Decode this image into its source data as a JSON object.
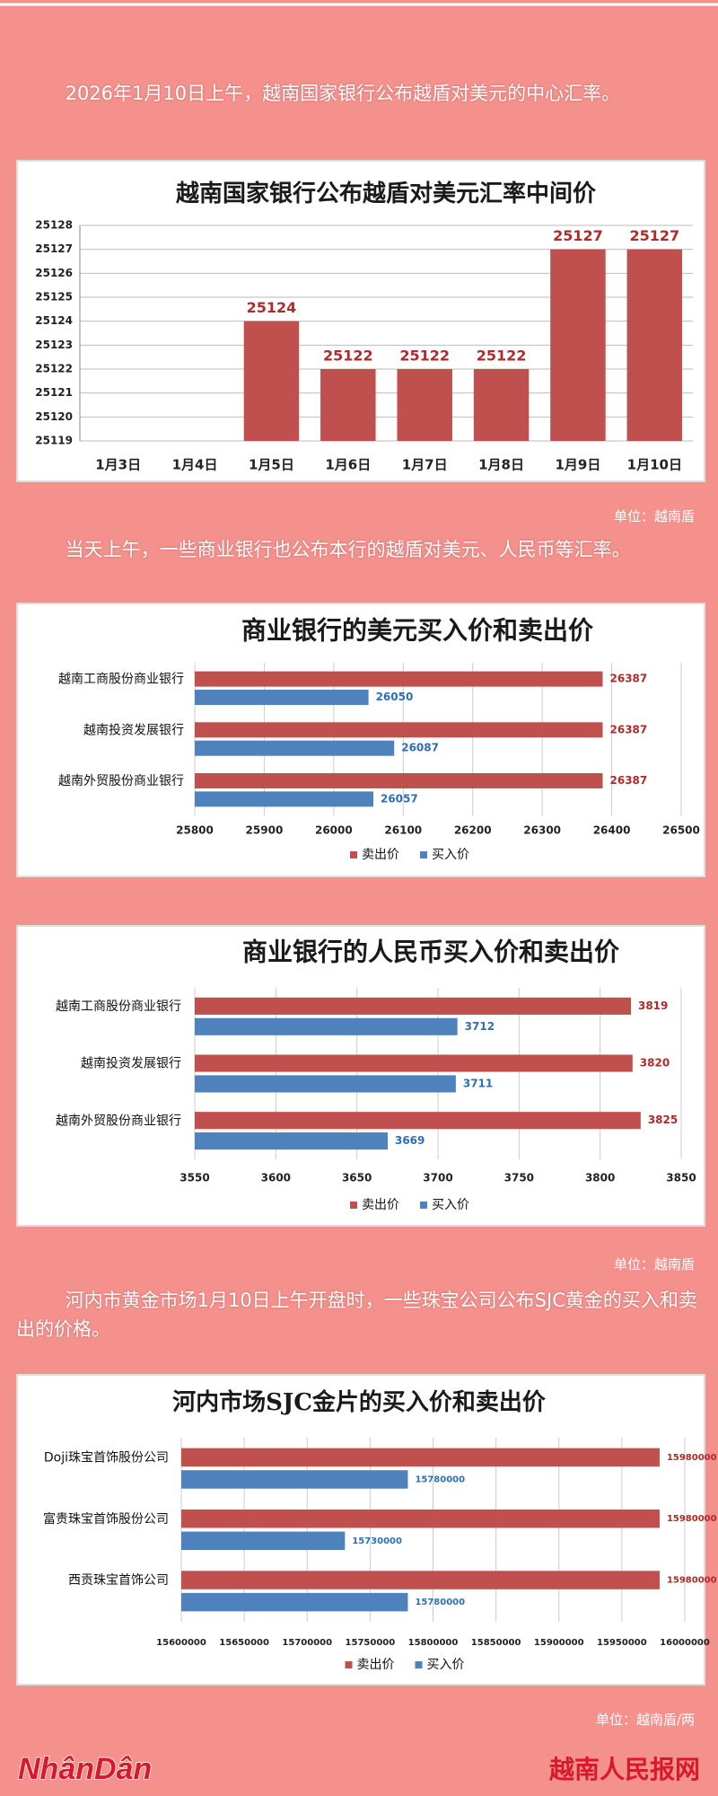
{
  "paragraphs": [
    "2026年1月10日上午，越南国家银行公布越盾对美元的中心汇率。",
    "当天上午，一些商业银行也公布本行的越盾对美元、人民币等汇率。",
    "河内市黄金市场1月10日上午开盘时，一些珠宝公司公布SJC黄金的买入和卖出的价格。"
  ],
  "units": [
    "单位：越南盾",
    "单位：越南盾",
    "单位：越南盾/两"
  ],
  "logo": "NhânDân",
  "site": "越南人民报网",
  "chart_data": [
    {
      "type": "bar",
      "title": "越南国家银行公布越盾对美元汇率中间价",
      "categories": [
        "1月3日",
        "1月4日",
        "1月5日",
        "1月6日",
        "1月7日",
        "1月8日",
        "1月9日",
        "1月10日"
      ],
      "values": [
        null,
        null,
        25124,
        25122,
        25122,
        25122,
        25127,
        25127
      ],
      "color": "#c0504d",
      "ylim": [
        25119,
        25128
      ],
      "yticks": [
        25119,
        25120,
        25121,
        25122,
        25123,
        25124,
        25125,
        25126,
        25127,
        25128
      ],
      "grid": true
    },
    {
      "type": "barh",
      "title": "商业银行的美元买入价和卖出价",
      "categories": [
        "越南工商股份商业银行",
        "越南投资发展银行",
        "越南外贸股份商业银行"
      ],
      "series": [
        {
          "name": "卖出价",
          "color": "#c0504d",
          "values": [
            26387,
            26387,
            26387
          ]
        },
        {
          "name": "买入价",
          "color": "#4f81bd",
          "values": [
            26050,
            26087,
            26057
          ]
        }
      ],
      "xlim": [
        25800,
        26500
      ],
      "xticks": [
        25800,
        25900,
        26000,
        26100,
        26200,
        26300,
        26400,
        26500
      ],
      "grid": true,
      "legend": "bottom"
    },
    {
      "type": "barh",
      "title": "商业银行的人民币买入价和卖出价",
      "categories": [
        "越南工商股份商业银行",
        "越南投资发展银行",
        "越南外贸股份商业银行"
      ],
      "series": [
        {
          "name": "卖出价",
          "color": "#c0504d",
          "values": [
            3819,
            3820,
            3825
          ]
        },
        {
          "name": "买入价",
          "color": "#4f81bd",
          "values": [
            3712,
            3711,
            3669
          ]
        }
      ],
      "xlim": [
        3550,
        3850
      ],
      "xticks": [
        3550,
        3600,
        3650,
        3700,
        3750,
        3800,
        3850
      ],
      "grid": true,
      "legend": "bottom"
    },
    {
      "type": "barh",
      "title": "河内市场SJC金片的买入价和卖出价",
      "categories": [
        "Doji珠宝首饰股份公司",
        "富贵珠宝首饰股份公司",
        "西贡珠宝首饰公司"
      ],
      "series": [
        {
          "name": "卖出价",
          "color": "#c0504d",
          "values": [
            15980000,
            15980000,
            15980000
          ]
        },
        {
          "name": "买入价",
          "color": "#4f81bd",
          "values": [
            15780000,
            15730000,
            15780000
          ]
        }
      ],
      "xlim": [
        15600000,
        16000000
      ],
      "xticks": [
        15600000,
        15650000,
        15700000,
        15750000,
        15800000,
        15850000,
        15900000,
        15950000,
        16000000
      ],
      "grid": true,
      "legend": "bottom"
    }
  ]
}
